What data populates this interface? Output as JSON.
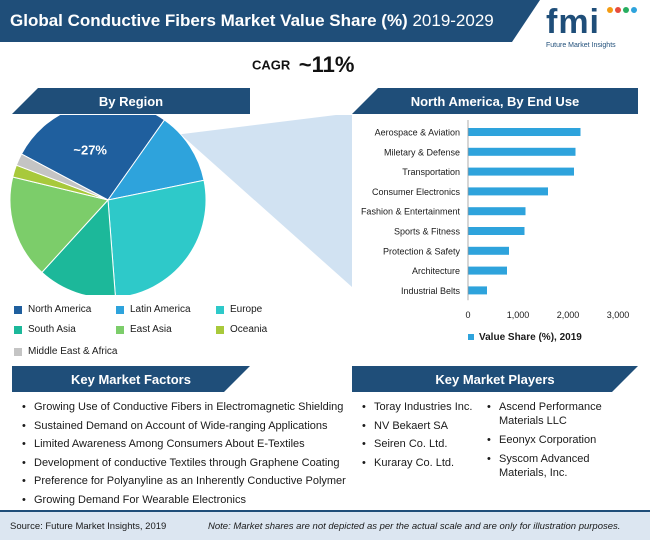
{
  "header": {
    "title_bold": "Global Conductive Fibers Market Value Share (%)",
    "title_years": "2019-2029",
    "logo_text": "fmi",
    "logo_caption": "Future Market Insights"
  },
  "cagr": {
    "label": "CAGR",
    "value": "~11%"
  },
  "sections": {
    "region": "By Region",
    "north_america": "North America, By End Use",
    "factors": "Key Market Factors",
    "players": "Key Market Players"
  },
  "colors": {
    "brand": "#1f4e79",
    "accent": "#2ea3dc"
  },
  "chart_data": [
    {
      "type": "pie",
      "title": "By Region",
      "slice_label": "~27%",
      "categories": [
        "North America",
        "Latin America",
        "Europe",
        "South Asia",
        "East Asia",
        "Oceania",
        "Middle East & Africa"
      ],
      "values": [
        27,
        12,
        27,
        13,
        17,
        2,
        2
      ],
      "colors": [
        "#1f5f9e",
        "#2ea3dc",
        "#2ec9c9",
        "#1cb89a",
        "#7ccd6a",
        "#a8c93b",
        "#c4c4c4"
      ],
      "legend": "bottom"
    },
    {
      "type": "bar",
      "orientation": "horizontal",
      "title": "North America, By End Use",
      "categories": [
        "Aerospace & Aviation",
        "Miletary & Defense",
        "Transportation",
        "Consumer Electronics",
        "Fashion & Entertainment",
        "Sports & Fitness",
        "Protection & Safety",
        "Architecture",
        "Industrial Belts"
      ],
      "series": [
        {
          "name": "Value Share (%), 2019",
          "values": [
            2250,
            2150,
            2120,
            1600,
            1150,
            1130,
            820,
            780,
            380
          ]
        }
      ],
      "xlim": [
        0,
        3000
      ],
      "ticks": [
        "0",
        "1,000",
        "2,000",
        "3,000"
      ],
      "tick_values": [
        0,
        1000,
        2000,
        3000
      ],
      "color": "#2ea3dc",
      "grid": false,
      "legend": "bottom"
    }
  ],
  "factors": [
    "Growing Use of Conductive Fibers in Electromagnetic Shielding",
    "Sustained Demand on Account of Wide-ranging Applications",
    "Limited Awareness Among Consumers About E-Textiles",
    "Development of conductive Textiles through Graphene Coating",
    "Preference for Polyanyline as an Inherently Conductive Polymer",
    "Growing Demand For Wearable Electronics"
  ],
  "players_col1": [
    "Toray Industries Inc.",
    "NV Bekaert SA",
    "Seiren Co. Ltd.",
    "Kuraray Co. Ltd."
  ],
  "players_col2": [
    "Ascend Performance Materials LLC",
    "Eeonyx Corporation",
    "Syscom Advanced Materials, Inc."
  ],
  "footer": {
    "source": "Source: Future Market Insights, 2019",
    "note": "Note: Market shares are not depicted as per the actual scale and are only for illustration purposes."
  }
}
